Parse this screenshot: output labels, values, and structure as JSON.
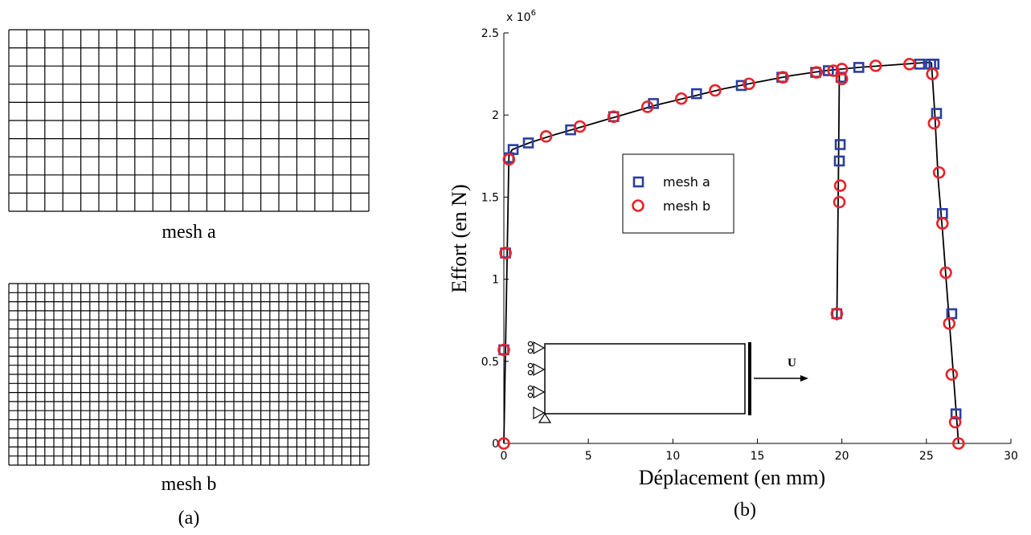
{
  "panel_a": {
    "mesh_a": {
      "label": "mesh a",
      "cols": 20,
      "rows": 10
    },
    "mesh_b": {
      "label": "mesh b",
      "cols": 40,
      "rows": 20
    },
    "caption": "(a)"
  },
  "panel_b": {
    "caption": "(b)"
  },
  "diagram": {
    "load_label": "U"
  },
  "chart_data": {
    "type": "scatter",
    "xlabel": "Déplacement (en mm)",
    "ylabel": "Effort (en N)",
    "y_multiplier_label": "x 10",
    "y_multiplier_exponent": "6",
    "xlim": [
      0,
      30
    ],
    "ylim": [
      0,
      2.5
    ],
    "xticks": [
      0,
      5,
      10,
      15,
      20,
      25,
      30
    ],
    "yticks": [
      0,
      0.5,
      1,
      1.5,
      2,
      2.5
    ],
    "xtick_labels": [
      "0",
      "5",
      "10",
      "15",
      "20",
      "25",
      "30"
    ],
    "ytick_labels": [
      "0",
      "0.5",
      "1",
      "1.5",
      "2",
      "2.5"
    ],
    "legend_position": "center-left",
    "grid": false,
    "curves": [
      {
        "color": "#000000",
        "points": [
          [
            0,
            0
          ],
          [
            0.3,
            1.75
          ],
          [
            0.5,
            1.79
          ],
          [
            1.5,
            1.83
          ],
          [
            3,
            1.88
          ],
          [
            5,
            1.94
          ],
          [
            7,
            2.0
          ],
          [
            9,
            2.06
          ],
          [
            11,
            2.11
          ],
          [
            13,
            2.16
          ],
          [
            15,
            2.2
          ],
          [
            17,
            2.24
          ],
          [
            19,
            2.27
          ],
          [
            21,
            2.29
          ],
          [
            23,
            2.305
          ],
          [
            25,
            2.32
          ],
          [
            25.3,
            2.32
          ]
        ]
      },
      {
        "color": "#000000",
        "points": [
          [
            19.85,
            2.25
          ],
          [
            19.8,
            1.7
          ],
          [
            19.75,
            1.2
          ],
          [
            19.7,
            0.75
          ]
        ]
      },
      {
        "color": "#000000",
        "points": [
          [
            25.3,
            2.32
          ],
          [
            25.5,
            2.0
          ],
          [
            25.7,
            1.6
          ],
          [
            25.95,
            1.3
          ],
          [
            26.2,
            0.95
          ],
          [
            26.5,
            0.55
          ],
          [
            26.9,
            0.0
          ]
        ]
      }
    ],
    "series": [
      {
        "name": "mesh a",
        "marker": "square",
        "color": "#2b3f9e",
        "points": [
          [
            0,
            0.57
          ],
          [
            0.1,
            1.16
          ],
          [
            0.3,
            1.74
          ],
          [
            0.55,
            1.79
          ],
          [
            1.45,
            1.83
          ],
          [
            3.95,
            1.91
          ],
          [
            6.5,
            1.99
          ],
          [
            8.85,
            2.07
          ],
          [
            11.4,
            2.13
          ],
          [
            14.05,
            2.18
          ],
          [
            16.45,
            2.23
          ],
          [
            18.45,
            2.26
          ],
          [
            19.2,
            2.27
          ],
          [
            19.95,
            2.23
          ],
          [
            21,
            2.29
          ],
          [
            24.6,
            2.31
          ],
          [
            25.25,
            2.31
          ],
          [
            25.45,
            2.31
          ],
          [
            19.9,
            1.82
          ],
          [
            19.85,
            1.72
          ],
          [
            19.7,
            0.79
          ],
          [
            25.6,
            2.01
          ],
          [
            25.95,
            1.4
          ],
          [
            26.5,
            0.79
          ],
          [
            26.75,
            0.18
          ]
        ]
      },
      {
        "name": "mesh b",
        "marker": "circle",
        "color": "#e8232a",
        "points": [
          [
            0,
            0
          ],
          [
            0,
            0.57
          ],
          [
            0.1,
            1.16
          ],
          [
            0.3,
            1.73
          ],
          [
            2.5,
            1.87
          ],
          [
            4.5,
            1.93
          ],
          [
            6.5,
            1.99
          ],
          [
            8.5,
            2.05
          ],
          [
            10.5,
            2.1
          ],
          [
            12.5,
            2.15
          ],
          [
            14.5,
            2.19
          ],
          [
            16.5,
            2.23
          ],
          [
            18.5,
            2.26
          ],
          [
            19.5,
            2.27
          ],
          [
            20,
            2.28
          ],
          [
            20,
            2.22
          ],
          [
            22,
            2.3
          ],
          [
            24,
            2.31
          ],
          [
            25.35,
            2.25
          ],
          [
            25.45,
            1.95
          ],
          [
            25.75,
            1.65
          ],
          [
            25.95,
            1.34
          ],
          [
            26.15,
            1.04
          ],
          [
            26.35,
            0.73
          ],
          [
            26.5,
            0.42
          ],
          [
            26.7,
            0.13
          ],
          [
            26.9,
            0.0
          ],
          [
            19.9,
            1.57
          ],
          [
            19.85,
            1.47
          ],
          [
            19.7,
            0.79
          ]
        ]
      }
    ]
  }
}
